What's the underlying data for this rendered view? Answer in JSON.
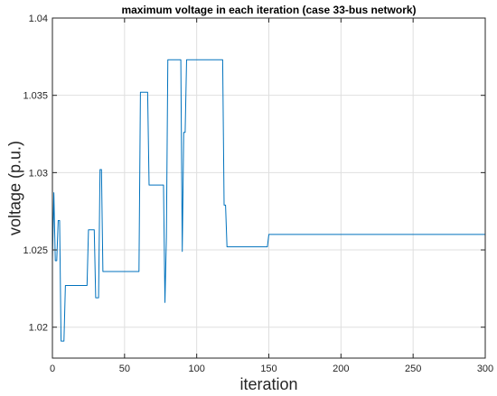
{
  "chart_data": {
    "type": "line",
    "title": "maximum voltage in each iteration (case 33-bus network)",
    "xlabel": "iteration",
    "ylabel": "voltage (p.u.)",
    "xlim": [
      0,
      300
    ],
    "ylim": [
      1.018,
      1.04
    ],
    "xticks": [
      0,
      50,
      100,
      150,
      200,
      250,
      300
    ],
    "xtick_labels": [
      "0",
      "50",
      "100",
      "150",
      "200",
      "250",
      "300"
    ],
    "yticks": [
      1.02,
      1.025,
      1.03,
      1.035,
      1.04
    ],
    "ytick_labels": [
      "1.02",
      "1.025",
      "1.03",
      "1.035",
      "1.04"
    ],
    "grid": true,
    "series": [
      {
        "color": "#0072BD",
        "x": [
          0,
          1,
          2,
          3,
          4,
          5,
          6,
          7,
          8,
          9,
          10,
          11,
          12,
          24,
          25,
          29,
          30,
          32,
          33,
          34,
          35,
          60,
          61,
          66,
          67,
          77,
          78,
          79,
          80,
          89,
          90,
          91,
          92,
          93,
          94,
          118,
          119,
          120,
          121,
          149,
          150,
          300
        ],
        "y": [
          1.0243,
          1.0287,
          1.0243,
          1.0243,
          1.0269,
          1.0269,
          1.0191,
          1.0191,
          1.0191,
          1.0227,
          1.0227,
          1.0227,
          1.0227,
          1.0227,
          1.0263,
          1.0263,
          1.0219,
          1.0219,
          1.0302,
          1.0302,
          1.0236,
          1.0236,
          1.0352,
          1.0352,
          1.0292,
          1.0292,
          1.0216,
          1.0258,
          1.0373,
          1.0373,
          1.0249,
          1.0326,
          1.0326,
          1.0373,
          1.0373,
          1.0373,
          1.0279,
          1.0279,
          1.0252,
          1.0252,
          1.026,
          1.026
        ]
      }
    ]
  }
}
